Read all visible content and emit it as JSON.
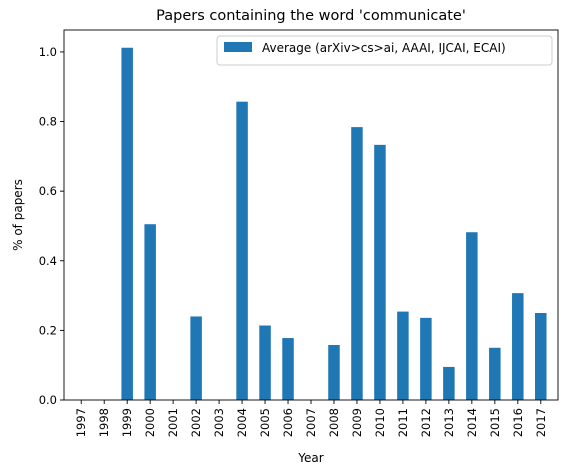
{
  "chart_data": {
    "type": "bar",
    "title": "Papers containing the word 'communicate'",
    "xlabel": "Year",
    "ylabel": "% of papers",
    "categories": [
      "1997",
      "1998",
      "1999",
      "2000",
      "2001",
      "2002",
      "2003",
      "2004",
      "2005",
      "2006",
      "2007",
      "2008",
      "2009",
      "2010",
      "2011",
      "2012",
      "2013",
      "2014",
      "2015",
      "2016",
      "2017"
    ],
    "series": [
      {
        "name": "Average (arXiv>cs>ai, AAAI, IJCAI, ECAI)",
        "color": "#1f77b4",
        "values": [
          0,
          0,
          1.012,
          0.505,
          0,
          0.24,
          0,
          0.857,
          0.214,
          0.178,
          0,
          0.158,
          0.784,
          0.733,
          0.254,
          0.236,
          0.095,
          0.482,
          0.15,
          0.307,
          0.25
        ]
      }
    ],
    "ylim": [
      0,
      1.063
    ],
    "yticks": [
      "0.0",
      "0.2",
      "0.4",
      "0.6",
      "0.8",
      "1.0"
    ],
    "grid": false,
    "legend_position": "top-right"
  }
}
